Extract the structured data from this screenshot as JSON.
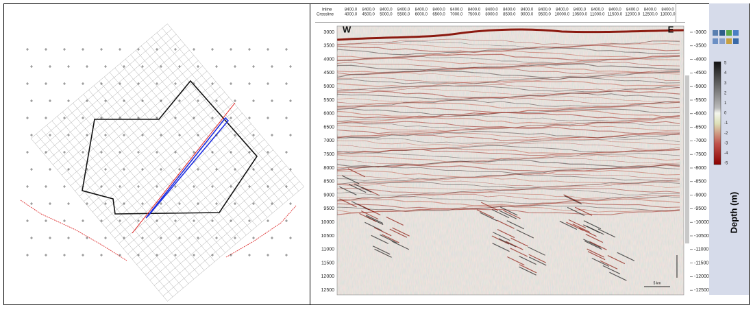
{
  "seismic": {
    "inline_label": "Inline",
    "crossline_label": "Crossline",
    "inline_values": [
      "8400.0",
      "8400.0",
      "8400.0",
      "8400.0",
      "8400.0",
      "8400.0",
      "8400.0",
      "8400.0",
      "8400.0",
      "8400.0",
      "8400.0",
      "8400.0",
      "8400.0",
      "8400.0",
      "8400.0",
      "8400.0",
      "8400.0",
      "8400.0",
      "8400.0"
    ],
    "crossline_values": [
      "4000.0",
      "4500.0",
      "5000.0",
      "5500.0",
      "6000.0",
      "6500.0",
      "7000.0",
      "7500.0",
      "8000.0",
      "8500.0",
      "9000.0",
      "9500.0",
      "10000.0",
      "10500.0",
      "11000.0",
      "11500.0",
      "12000.0",
      "12500.0",
      "13000.0"
    ],
    "left_depth_ticks": [
      "3000",
      "3500",
      "4000",
      "4500",
      "5000",
      "5500",
      "6000",
      "6500",
      "7000",
      "7500",
      "8000",
      "8500",
      "9000",
      "9500",
      "10000",
      "10500",
      "11000",
      "11500",
      "12000",
      "12500"
    ],
    "right_depth_ticks": [
      "-3000",
      "-3500",
      "-4000",
      "-4500",
      "-5000",
      "-5500",
      "-6000",
      "-6500",
      "-7000",
      "-7500",
      "-8000",
      "-8500",
      "-9000",
      "-9500",
      "-10000",
      "-10500",
      "-11000",
      "-11500",
      "-12000",
      "-12500"
    ],
    "west_label": "W",
    "east_label": "E",
    "scale_label": "5 km",
    "colorbar_ticks": [
      "5",
      "4",
      "3",
      "2",
      "1",
      "0",
      "-1",
      "-2",
      "-3",
      "-4",
      "-5"
    ],
    "colorbar_label": "Depth (m)"
  }
}
